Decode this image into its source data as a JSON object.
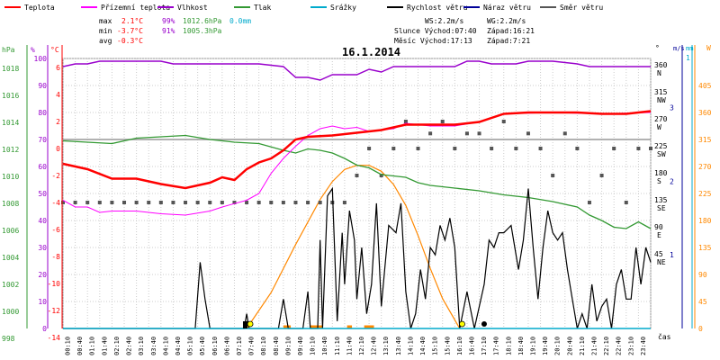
{
  "chart_data": {
    "type": "line",
    "title": "16.1.2014",
    "legend": [
      {
        "name": "Teplota",
        "color": "#ff0000"
      },
      {
        "name": "Přízemní teplota",
        "color": "#ff00ff"
      },
      {
        "name": "Vlhkost",
        "color": "#9900cc"
      },
      {
        "name": "Tlak",
        "color": "#339933"
      },
      {
        "name": "Srážky",
        "color": "#00aacc"
      },
      {
        "name": "Rychlost větru",
        "color": "#000000"
      },
      {
        "name": "Náraz větru",
        "color": "#000099"
      },
      {
        "name": "Směr větru",
        "color": "#555555"
      }
    ],
    "stats": {
      "max": {
        "label": "max",
        "temp": "2.1°C",
        "hum": "99%",
        "press": "1012.6hPa",
        "rain": "0.0mm"
      },
      "min": {
        "label": "min",
        "temp": "-3.7°C",
        "hum": "91%",
        "press": "1005.3hPa"
      },
      "avg": {
        "label": "avg",
        "temp": "-0.3°C"
      }
    },
    "wind_info": {
      "ws": "WS:2.2m/s",
      "wg": "WG:2.2m/s"
    },
    "sun_info": {
      "rise": "Slunce Východ:07:40",
      "set": "Západ:16:21"
    },
    "moon_info": {
      "rise": "Měsíc Východ:17:13",
      "set": "Západ:7:21"
    },
    "axes": {
      "hpa": {
        "label": "hPa",
        "ticks": [
          "1018",
          "1016",
          "1014",
          "1012",
          "1010",
          "1008",
          "1006",
          "1004",
          "1002",
          "1000",
          "998"
        ],
        "color": "#339933"
      },
      "pct": {
        "label": "%",
        "ticks": [
          "100",
          "90",
          "80",
          "70",
          "60",
          "50",
          "40",
          "30",
          "20",
          "10",
          "0"
        ],
        "color": "#9900cc"
      },
      "degc": {
        "label": "°C",
        "ticks": [
          "6",
          "4",
          "2",
          "0",
          "-2",
          "-4",
          "-6",
          "-8",
          "-10",
          "-12",
          "-14"
        ],
        "color": "#ff0000"
      },
      "deg": {
        "label": "°",
        "ticks": [
          {
            "v": "360",
            "d": "N"
          },
          {
            "v": "315",
            "d": "NW"
          },
          {
            "v": "270",
            "d": "W"
          },
          {
            "v": "225",
            "d": "SW"
          },
          {
            "v": "180",
            "d": "S"
          },
          {
            "v": "135",
            "d": "SE"
          },
          {
            "v": "90",
            "d": "E"
          },
          {
            "v": "45",
            "d": "NE"
          }
        ]
      },
      "ms": {
        "label": "m/s",
        "ticks": [
          "3",
          "2",
          "1"
        ],
        "color": "#000099"
      },
      "mm": {
        "label": "mm",
        "ticks": [
          "1"
        ],
        "color": "#00aacc"
      },
      "w": {
        "label": "W",
        "ticks": [
          "405",
          "360",
          "315",
          "270",
          "225",
          "180",
          "135",
          "90",
          "45",
          "0"
        ],
        "color": "#ff8800"
      },
      "x_label": "čas"
    },
    "x_ticks": [
      "00:10",
      "00:40",
      "01:10",
      "01:40",
      "02:10",
      "02:40",
      "03:10",
      "03:40",
      "04:10",
      "04:40",
      "05:10",
      "05:40",
      "06:10",
      "06:40",
      "07:10",
      "07:40",
      "08:10",
      "08:40",
      "09:10",
      "09:40",
      "10:10",
      "10:40",
      "11:10",
      "11:40",
      "12:10",
      "12:40",
      "13:10",
      "13:40",
      "14:10",
      "14:40",
      "15:10",
      "15:40",
      "16:10",
      "16:40",
      "17:10",
      "17:40",
      "18:10",
      "18:40",
      "19:10",
      "19:40",
      "20:10",
      "20:40",
      "21:10",
      "21:40",
      "22:10",
      "22:40",
      "23:10",
      "23:40"
    ],
    "xlim": [
      0,
      24
    ],
    "series": {
      "temperature": [
        [
          0,
          -1.8
        ],
        [
          1,
          -2.2
        ],
        [
          2,
          -2.9
        ],
        [
          3,
          -2.9
        ],
        [
          4,
          -3.3
        ],
        [
          5,
          -3.6
        ],
        [
          6,
          -3.2
        ],
        [
          6.5,
          -2.8
        ],
        [
          7,
          -3
        ],
        [
          7.5,
          -2.2
        ],
        [
          8,
          -1.7
        ],
        [
          8.5,
          -1.4
        ],
        [
          9,
          -0.8
        ],
        [
          9.5,
          0
        ],
        [
          10,
          0.2
        ],
        [
          11,
          0.3
        ],
        [
          11.5,
          0.4
        ],
        [
          12,
          0.5
        ],
        [
          12.5,
          0.6
        ],
        [
          13,
          0.7
        ],
        [
          13.5,
          0.9
        ],
        [
          14,
          1.1
        ],
        [
          15,
          1.1
        ],
        [
          16,
          1.1
        ],
        [
          17,
          1.3
        ],
        [
          18,
          1.9
        ],
        [
          19,
          2.0
        ],
        [
          21,
          2.0
        ],
        [
          22,
          1.9
        ],
        [
          23,
          1.9
        ],
        [
          24,
          2.1
        ]
      ],
      "ground_temperature": [
        [
          0,
          -4.5
        ],
        [
          0.5,
          -5
        ],
        [
          1,
          -5
        ],
        [
          1.5,
          -5.4
        ],
        [
          2,
          -5.3
        ],
        [
          3,
          -5.3
        ],
        [
          4,
          -5.5
        ],
        [
          5,
          -5.6
        ],
        [
          6,
          -5.3
        ],
        [
          6.5,
          -5
        ],
        [
          7.5,
          -4.5
        ],
        [
          8,
          -4
        ],
        [
          8.5,
          -2.5
        ],
        [
          9,
          -1.4
        ],
        [
          9.5,
          -0.5
        ],
        [
          10,
          0.3
        ],
        [
          10.5,
          0.8
        ],
        [
          11,
          1.0
        ],
        [
          11.5,
          0.8
        ],
        [
          12,
          0.9
        ],
        [
          12.5,
          0.6
        ],
        [
          13,
          0.7
        ],
        [
          13.5,
          0.8
        ],
        [
          14,
          1.2
        ],
        [
          14.5,
          1.1
        ],
        [
          15,
          1.0
        ],
        [
          16,
          1.0
        ],
        [
          17,
          1.3
        ],
        [
          18,
          1.9
        ],
        [
          20,
          2.0
        ],
        [
          22,
          1.9
        ],
        [
          24,
          2.0
        ]
      ],
      "humidity": [
        [
          0,
          97
        ],
        [
          0.5,
          98
        ],
        [
          1,
          98
        ],
        [
          1.5,
          99
        ],
        [
          4,
          99
        ],
        [
          4.5,
          98
        ],
        [
          5,
          98
        ],
        [
          8,
          98
        ],
        [
          9,
          97
        ],
        [
          9.5,
          93
        ],
        [
          10,
          93
        ],
        [
          10.5,
          92
        ],
        [
          11,
          94
        ],
        [
          12,
          94
        ],
        [
          12.5,
          96
        ],
        [
          13,
          95
        ],
        [
          13.5,
          97
        ],
        [
          14,
          97
        ],
        [
          16,
          97
        ],
        [
          16.5,
          99
        ],
        [
          17,
          99
        ],
        [
          17.5,
          98
        ],
        [
          18,
          98
        ],
        [
          18.5,
          98
        ],
        [
          19,
          99
        ],
        [
          20,
          99
        ],
        [
          21,
          98
        ],
        [
          21.5,
          97
        ],
        [
          24,
          97
        ]
      ],
      "pressure": [
        [
          0,
          1011.9
        ],
        [
          1,
          1011.8
        ],
        [
          2,
          1011.7
        ],
        [
          3,
          1012.1
        ],
        [
          4,
          1012.2
        ],
        [
          5,
          1012.3
        ],
        [
          6,
          1012
        ],
        [
          7,
          1011.8
        ],
        [
          8,
          1011.7
        ],
        [
          9,
          1011.2
        ],
        [
          9.5,
          1011.0
        ],
        [
          10,
          1011.3
        ],
        [
          10.5,
          1011.2
        ],
        [
          11,
          1011.0
        ],
        [
          11.5,
          1010.6
        ],
        [
          12,
          1010.1
        ],
        [
          12.5,
          1009.9
        ],
        [
          13,
          1009.4
        ],
        [
          13.5,
          1009.3
        ],
        [
          14,
          1009.2
        ],
        [
          14.5,
          1008.8
        ],
        [
          15,
          1008.6
        ],
        [
          16,
          1008.4
        ],
        [
          17,
          1008.2
        ],
        [
          18,
          1007.9
        ],
        [
          19,
          1007.7
        ],
        [
          20,
          1007.4
        ],
        [
          21,
          1007.0
        ],
        [
          21.5,
          1006.4
        ],
        [
          22,
          1006.0
        ],
        [
          22.5,
          1005.5
        ],
        [
          23,
          1005.4
        ],
        [
          23.5,
          1005.9
        ],
        [
          24,
          1005.4
        ]
      ],
      "wind_speed": [
        [
          0,
          0
        ],
        [
          5.4,
          0
        ],
        [
          5.6,
          0.9
        ],
        [
          5.8,
          0.4
        ],
        [
          6,
          0
        ],
        [
          7.4,
          0
        ],
        [
          7.5,
          0.2
        ],
        [
          7.6,
          0
        ],
        [
          8.8,
          0
        ],
        [
          9,
          0.4
        ],
        [
          9.2,
          0
        ],
        [
          9.8,
          0
        ],
        [
          10,
          0.5
        ],
        [
          10.1,
          0
        ],
        [
          10.4,
          0
        ],
        [
          10.5,
          1.2
        ],
        [
          10.6,
          0
        ],
        [
          10.8,
          1.8
        ],
        [
          11,
          1.9
        ],
        [
          11.2,
          0.1
        ],
        [
          11.4,
          1.3
        ],
        [
          11.5,
          0.6
        ],
        [
          11.7,
          1.6
        ],
        [
          11.9,
          1.2
        ],
        [
          12,
          0.4
        ],
        [
          12.2,
          1.1
        ],
        [
          12.4,
          0.2
        ],
        [
          12.6,
          0.6
        ],
        [
          12.8,
          1.7
        ],
        [
          13,
          0.3
        ],
        [
          13.3,
          1.4
        ],
        [
          13.6,
          1.3
        ],
        [
          13.8,
          1.7
        ],
        [
          14,
          0.5
        ],
        [
          14.2,
          0
        ],
        [
          14.4,
          0.2
        ],
        [
          14.6,
          0.8
        ],
        [
          14.8,
          0.4
        ],
        [
          15,
          1.1
        ],
        [
          15.2,
          1.0
        ],
        [
          15.4,
          1.4
        ],
        [
          15.6,
          1.2
        ],
        [
          15.8,
          1.5
        ],
        [
          16,
          1.1
        ],
        [
          16.2,
          0
        ],
        [
          16.5,
          0.5
        ],
        [
          16.8,
          0
        ],
        [
          17.2,
          0.6
        ],
        [
          17.4,
          1.2
        ],
        [
          17.6,
          1.1
        ],
        [
          17.8,
          1.3
        ],
        [
          18,
          1.3
        ],
        [
          18.3,
          1.4
        ],
        [
          18.6,
          0.8
        ],
        [
          18.8,
          1.2
        ],
        [
          19,
          1.9
        ],
        [
          19.2,
          1.1
        ],
        [
          19.4,
          0.4
        ],
        [
          19.6,
          1.1
        ],
        [
          19.8,
          1.6
        ],
        [
          20,
          1.3
        ],
        [
          20.2,
          1.2
        ],
        [
          20.4,
          1.3
        ],
        [
          20.6,
          0.8
        ],
        [
          20.8,
          0.4
        ],
        [
          21,
          0
        ],
        [
          21.2,
          0.2
        ],
        [
          21.4,
          0
        ],
        [
          21.6,
          0.6
        ],
        [
          21.8,
          0.1
        ],
        [
          22,
          0.3
        ],
        [
          22.2,
          0.4
        ],
        [
          22.4,
          0
        ],
        [
          22.6,
          0.6
        ],
        [
          22.8,
          0.8
        ],
        [
          23,
          0.4
        ],
        [
          23.2,
          0.4
        ],
        [
          23.4,
          1.1
        ],
        [
          23.6,
          0.6
        ],
        [
          23.8,
          1.1
        ],
        [
          24,
          0.9
        ]
      ],
      "solar": [
        [
          7.5,
          0
        ],
        [
          8.5,
          60
        ],
        [
          9.5,
          140
        ],
        [
          10.5,
          215
        ],
        [
          11,
          245
        ],
        [
          11.5,
          265
        ],
        [
          12,
          272
        ],
        [
          12.5,
          272
        ],
        [
          13,
          262
        ],
        [
          13.5,
          240
        ],
        [
          14,
          205
        ],
        [
          14.5,
          155
        ],
        [
          15,
          100
        ],
        [
          15.5,
          50
        ],
        [
          16.2,
          0
        ]
      ],
      "rain_spans": [
        [
          9.0,
          9.3
        ],
        [
          10.1,
          10.6
        ],
        [
          11.6,
          11.8
        ],
        [
          12.3,
          12.7
        ]
      ],
      "wind_direction": [
        [
          0,
          135
        ],
        [
          0.5,
          135
        ],
        [
          1,
          135
        ],
        [
          1.5,
          135
        ],
        [
          2,
          135
        ],
        [
          2.5,
          135
        ],
        [
          3,
          135
        ],
        [
          3.5,
          135
        ],
        [
          4,
          135
        ],
        [
          4.5,
          135
        ],
        [
          5,
          135
        ],
        [
          5.5,
          135
        ],
        [
          6,
          135
        ],
        [
          6.5,
          135
        ],
        [
          7,
          135
        ],
        [
          7.5,
          135
        ],
        [
          8,
          135
        ],
        [
          8.5,
          135
        ],
        [
          9,
          135
        ],
        [
          9.5,
          135
        ],
        [
          10,
          135
        ],
        [
          10.5,
          135
        ],
        [
          11,
          135
        ],
        [
          11.5,
          135
        ],
        [
          12,
          180
        ],
        [
          12.5,
          225
        ],
        [
          13,
          180
        ],
        [
          13.5,
          225
        ],
        [
          14,
          270
        ],
        [
          14.5,
          225
        ],
        [
          15,
          250
        ],
        [
          15.5,
          270
        ],
        [
          16,
          225
        ],
        [
          16.5,
          250
        ],
        [
          17,
          250
        ],
        [
          17.5,
          225
        ],
        [
          18,
          270
        ],
        [
          18.5,
          225
        ],
        [
          19,
          250
        ],
        [
          19.5,
          225
        ],
        [
          20,
          180
        ],
        [
          20.5,
          250
        ],
        [
          21,
          225
        ],
        [
          21.5,
          135
        ],
        [
          22,
          180
        ],
        [
          22.5,
          225
        ],
        [
          23,
          135
        ],
        [
          23.5,
          225
        ],
        [
          24,
          225
        ]
      ]
    },
    "sun_marker": {
      "x": 7.5
    },
    "moon_marker": {
      "x": 17.2
    }
  }
}
